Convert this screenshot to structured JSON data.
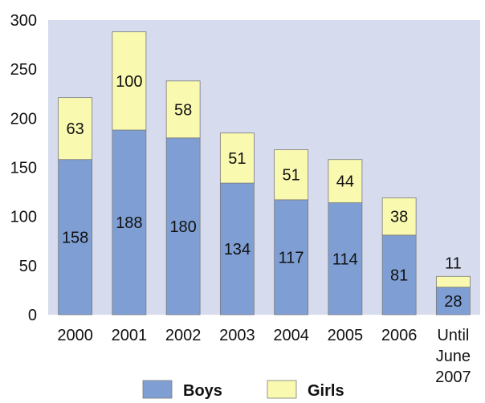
{
  "chart_data": {
    "type": "bar",
    "stacked": true,
    "categories": [
      "2000",
      "2001",
      "2002",
      "2003",
      "2004",
      "2005",
      "2006",
      "Until June 2007"
    ],
    "series": [
      {
        "name": "Boys",
        "color": "#7f9fd4",
        "values": [
          158,
          188,
          180,
          134,
          117,
          114,
          81,
          28
        ]
      },
      {
        "name": "Girls",
        "color": "#f9f9b0",
        "values": [
          63,
          100,
          58,
          51,
          51,
          44,
          38,
          11
        ]
      }
    ],
    "title": "",
    "xlabel": "",
    "ylabel": "",
    "ylim": [
      0,
      300
    ],
    "yticks": [
      0,
      50,
      100,
      150,
      200,
      250,
      300
    ],
    "grid": false,
    "legend": "bottom",
    "plot_background": "#d6dbee"
  }
}
